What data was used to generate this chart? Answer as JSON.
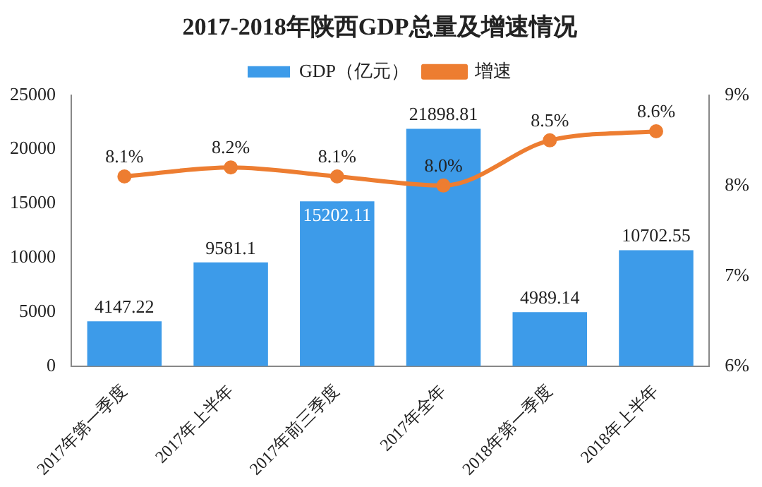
{
  "chart_data": {
    "type": "bar",
    "title": "2017-2018年陕西GDP总量及增速情况",
    "categories": [
      "2017年第一季度",
      "2017年上半年",
      "2017年前三季度",
      "2017年全年",
      "2018年第一季度",
      "2018年上半年"
    ],
    "series": [
      {
        "name": "GDP（亿元）",
        "color": "#3d9be9",
        "values": [
          4147.22,
          9581.1,
          15202.11,
          21898.81,
          4989.14,
          10702.55
        ],
        "value_labels": [
          "4147.22",
          "9581.1",
          "15202.11",
          "21898.81",
          "4989.14",
          "10702.55"
        ]
      },
      {
        "name": "增速",
        "type": "line",
        "axis": "y2",
        "color": "#ed7d31",
        "values": [
          8.1,
          8.2,
          8.1,
          8.0,
          8.5,
          8.6
        ],
        "value_labels": [
          "8.1%",
          "8.2%",
          "8.1%",
          "8.0%",
          "8.5%",
          "8.6%"
        ]
      }
    ],
    "ylim": [
      0,
      25000
    ],
    "yticks": [
      0,
      5000,
      10000,
      15000,
      20000,
      25000
    ],
    "y2lim": [
      6,
      9
    ],
    "y2ticks": [
      {
        "value": 6,
        "label": "6%"
      },
      {
        "value": 7,
        "label": "7%"
      },
      {
        "value": 8,
        "label": "8%"
      },
      {
        "value": 9,
        "label": "9%"
      }
    ],
    "legend": "top",
    "grid": false,
    "marker": "circle"
  }
}
